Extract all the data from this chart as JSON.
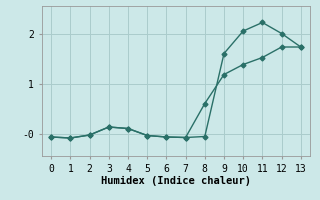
{
  "xlabel": "Humidex (Indice chaleur)",
  "background_color": "#cce8e8",
  "grid_color": "#aacccc",
  "line_color": "#2a7068",
  "xlim": [
    -0.5,
    13.5
  ],
  "ylim": [
    -0.45,
    2.55
  ],
  "yticks": [
    0.0,
    1.0,
    2.0
  ],
  "ytick_labels": [
    "-0",
    "1",
    "2"
  ],
  "xticks": [
    0,
    1,
    2,
    3,
    4,
    5,
    6,
    7,
    8,
    9,
    10,
    11,
    12,
    13
  ],
  "line1_x": [
    0,
    1,
    2,
    3,
    4,
    5,
    6,
    7,
    8,
    9,
    10,
    11,
    12,
    13
  ],
  "line1_y": [
    -0.07,
    -0.09,
    -0.03,
    0.13,
    0.1,
    -0.04,
    -0.07,
    -0.08,
    -0.06,
    1.6,
    2.05,
    2.22,
    2.0,
    1.73
  ],
  "line2_x": [
    0,
    1,
    2,
    3,
    4,
    5,
    6,
    7,
    8,
    9,
    10,
    11,
    12,
    13
  ],
  "line2_y": [
    -0.07,
    -0.09,
    -0.03,
    0.13,
    0.1,
    -0.04,
    -0.07,
    -0.08,
    0.6,
    1.18,
    1.38,
    1.52,
    1.73,
    1.73
  ]
}
